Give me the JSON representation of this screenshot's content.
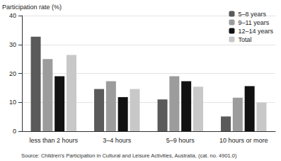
{
  "chart_data": {
    "type": "bar",
    "y_label": "Participation rate (%)",
    "annotations": [
      "Source: Children's Participation in Cultural and Leisure Activities, Australia, (cat. no. 4901.0)"
    ],
    "categories": [
      "less than 2 hours",
      "3–4 hours",
      "5–9 hours",
      "10 hours or more"
    ],
    "series": [
      {
        "name": "5–8 years",
        "color": "#5a5a5a",
        "values": [
          32.7,
          14.6,
          11.0,
          5.1
        ]
      },
      {
        "name": "9–11 years",
        "color": "#9c9c9c",
        "values": [
          25.0,
          17.3,
          19.0,
          11.6
        ]
      },
      {
        "name": "12–14 years",
        "color": "#111111",
        "values": [
          19.0,
          11.8,
          17.3,
          15.6
        ]
      },
      {
        "name": "Total",
        "color": "#c8c8c8",
        "values": [
          26.4,
          14.6,
          15.4,
          9.9
        ]
      }
    ],
    "ylim": [
      0,
      40
    ],
    "yticks": [
      0,
      10,
      20,
      30,
      40
    ],
    "grid": true,
    "legend": "top-right"
  }
}
